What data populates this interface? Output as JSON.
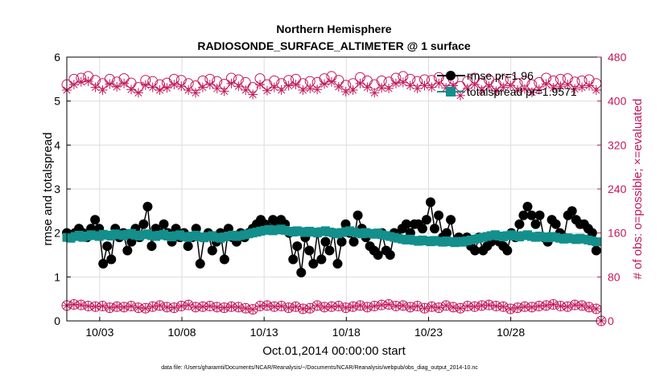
{
  "chart_data": {
    "type": "line",
    "title_line1": "Northern Hemisphere",
    "title_line2": "RADIOSONDE_SURFACE_ALTIMETER @ 1 surface",
    "xlabel": "Oct.01,2014 00:00:00 start",
    "ylabel_left": "rmse and totalspread",
    "ylabel_right": "# of obs: o=possible; ×=evaluated",
    "xlim": [
      1,
      33.5
    ],
    "ylim_left": [
      0,
      6
    ],
    "ylim_right": [
      0,
      480
    ],
    "x_ticks": [
      3,
      8,
      13,
      18,
      23,
      28
    ],
    "x_tick_labels": [
      "10/03",
      "10/08",
      "10/13",
      "10/18",
      "10/23",
      "10/28"
    ],
    "y_ticks_left": [
      0,
      1,
      2,
      3,
      4,
      5,
      6
    ],
    "y_tick_labels_left": [
      "0",
      "1",
      "2",
      "3",
      "4",
      "5",
      "6"
    ],
    "y_ticks_right": [
      0,
      80,
      160,
      240,
      320,
      400,
      480
    ],
    "y_tick_labels_right": [
      "0",
      "80",
      "160",
      "240",
      "320",
      "400",
      "480"
    ],
    "grid": true,
    "legend_position": "top-right",
    "colors": {
      "rmse": "#000000",
      "spread": "#138f8c",
      "obs": "#c2185b",
      "grid": "#dddddd"
    },
    "series": [
      {
        "name": "rmse pr=1.96",
        "axis": "left",
        "values": [
          2.0,
          1.9,
          2.0,
          2.1,
          2.0,
          1.9,
          2.1,
          2.3,
          2.1,
          1.3,
          1.7,
          1.4,
          2.1,
          1.9,
          2.0,
          1.6,
          1.8,
          2.1,
          1.9,
          2.2,
          2.6,
          1.7,
          2.1,
          2.0,
          2.2,
          2.0,
          1.8,
          2.1,
          1.9,
          2.0,
          1.7,
          1.9,
          2.1,
          1.3,
          1.9,
          2.0,
          1.6,
          1.8,
          2.0,
          1.4,
          2.1,
          1.9,
          1.8,
          2.0,
          1.9,
          2.0,
          2.1,
          2.2,
          2.3,
          2.2,
          2.1,
          2.3,
          2.2,
          2.3,
          2.2,
          2.0,
          1.4,
          1.7,
          1.1,
          1.9,
          1.6,
          1.3,
          2.0,
          1.4,
          1.8,
          1.6,
          2.0,
          1.3,
          1.8,
          2.2,
          2.0,
          1.8,
          2.4,
          2.1,
          1.9,
          1.7,
          1.6,
          1.5,
          2.0,
          1.6,
          1.5,
          2.0,
          1.9,
          2.1,
          2.2,
          2.0,
          2.2,
          2.2,
          2.1,
          2.3,
          2.7,
          2.1,
          2.4,
          1.9,
          2.0,
          2.3,
          1.8,
          1.9,
          1.8,
          1.9,
          1.7,
          1.6,
          1.9,
          1.6,
          1.7,
          1.8,
          1.9,
          1.8,
          1.7,
          1.6,
          2.0,
          1.9,
          2.2,
          2.4,
          2.6,
          2.4,
          2.2,
          2.4,
          1.9,
          1.8,
          2.3,
          2.2,
          2.0,
          1.9,
          2.4,
          2.5,
          2.3,
          2.2,
          2.2,
          2.1,
          2.0,
          1.6
        ]
      },
      {
        "name": "totalspread pr=1.9571",
        "axis": "left",
        "values": [
          1.9,
          1.88,
          1.92,
          1.95,
          1.9,
          1.93,
          1.96,
          1.94,
          1.92,
          1.97,
          1.95,
          1.93,
          1.98,
          1.96,
          1.94,
          1.97,
          1.99,
          1.95,
          1.93,
          1.96,
          1.98,
          1.94,
          1.92,
          1.95,
          1.97,
          1.93,
          1.91,
          1.94,
          1.96,
          1.92,
          1.9,
          1.93,
          1.95,
          1.91,
          1.89,
          1.92,
          1.94,
          1.9,
          1.88,
          1.91,
          1.93,
          1.95,
          1.92,
          1.94,
          1.96,
          1.98,
          2.0,
          2.02,
          2.04,
          2.06,
          2.08,
          2.05,
          2.07,
          2.09,
          2.06,
          2.04,
          2.02,
          2.05,
          2.03,
          2.01,
          2.04,
          2.02,
          2.0,
          2.03,
          2.05,
          2.02,
          2.0,
          1.98,
          2.01,
          2.03,
          2.05,
          2.02,
          2.0,
          1.98,
          2.01,
          1.99,
          1.97,
          2.0,
          1.96,
          1.94,
          1.92,
          1.9,
          1.88,
          1.86,
          1.84,
          1.86,
          1.83,
          1.81,
          1.84,
          1.82,
          1.8,
          1.83,
          1.81,
          1.79,
          1.82,
          1.8,
          1.78,
          1.81,
          1.79,
          1.82,
          1.84,
          1.86,
          1.88,
          1.9,
          1.92,
          1.94,
          1.96,
          1.93,
          1.91,
          1.94,
          1.96,
          1.93,
          1.91,
          1.94,
          1.96,
          1.92,
          1.9,
          1.93,
          1.91,
          1.89,
          1.92,
          1.9,
          1.88,
          1.86,
          1.89,
          1.87,
          1.85,
          1.88,
          1.86,
          1.84,
          1.82,
          1.8
        ]
      },
      {
        "name": "obs possible",
        "axis": "right",
        "values": [
          430,
          440,
          442,
          445,
          438,
          432,
          440,
          435,
          441,
          433,
          425,
          438,
          436,
          430,
          433,
          440,
          438,
          432,
          428,
          437,
          440,
          436,
          431,
          442,
          439,
          434,
          425,
          441,
          430,
          437,
          432,
          438,
          440,
          432,
          436,
          434,
          441,
          445,
          438,
          429,
          432,
          443,
          437,
          430,
          437,
          435,
          442,
          445,
          440,
          436,
          439,
          438,
          443,
          437,
          440,
          427,
          436,
          442,
          433,
          439,
          431,
          438,
          440,
          432,
          436,
          430,
          434,
          442,
          437,
          440,
          441,
          435,
          437,
          439,
          432
        ]
      },
      {
        "name": "obs evaluated",
        "axis": "right",
        "values": [
          420,
          430,
          435,
          436,
          425,
          420,
          431,
          426,
          432,
          421,
          415,
          429,
          425,
          420,
          424,
          430,
          427,
          420,
          415,
          425,
          430,
          423,
          418,
          432,
          427,
          420,
          412,
          430,
          419,
          425,
          420,
          428,
          430,
          420,
          423,
          421,
          431,
          435,
          426,
          417,
          420,
          432,
          425,
          415,
          424,
          423,
          432,
          434,
          428,
          423,
          428,
          425,
          432,
          424,
          428,
          410,
          423,
          430,
          420,
          427,
          418,
          425,
          428,
          420,
          422,
          416,
          421,
          431,
          424,
          427,
          430,
          422,
          425,
          428,
          420
        ]
      },
      {
        "name": "rmse obs possible",
        "axis": "right",
        "values": [
          28,
          30,
          29,
          27,
          26,
          27,
          24,
          26,
          25,
          27,
          24,
          23,
          26,
          28,
          25,
          24,
          27,
          29,
          25,
          26,
          27,
          25,
          24,
          26,
          25,
          23,
          21,
          27,
          28,
          26,
          27,
          24,
          26,
          22,
          23,
          28,
          25,
          26,
          27,
          24,
          26,
          28,
          25,
          27,
          29,
          30,
          27,
          28,
          25,
          27,
          23,
          26,
          24,
          28,
          25,
          23,
          27,
          26,
          28,
          29,
          27,
          26,
          22,
          24,
          26,
          25,
          27,
          28,
          30,
          27,
          26,
          29,
          28,
          25,
          22
        ]
      },
      {
        "name": "rmse obs evaluated",
        "axis": "right",
        "values": [
          28,
          30,
          29,
          27,
          26,
          27,
          24,
          26,
          25,
          27,
          24,
          23,
          26,
          28,
          25,
          24,
          27,
          29,
          25,
          26,
          27,
          25,
          24,
          26,
          25,
          23,
          21,
          27,
          28,
          26,
          27,
          24,
          26,
          22,
          23,
          28,
          25,
          26,
          27,
          24,
          26,
          28,
          25,
          27,
          29,
          30,
          27,
          28,
          25,
          27,
          23,
          26,
          24,
          28,
          25,
          23,
          27,
          26,
          28,
          29,
          27,
          26,
          22,
          24,
          26,
          25,
          27,
          28,
          30,
          27,
          26,
          29,
          28,
          25,
          22
        ]
      }
    ],
    "legend": [
      {
        "label": "rmse pr=1.96",
        "series": 0
      },
      {
        "label": "totalspread pr=1.9571",
        "series": 1
      }
    ],
    "footnote": "data file: /Users/gharamti/Documents/NCAR/Reanalysis/~/Documents/NCAR/Reanalysis/webpub/obs_diag_output_2014-10.nc"
  }
}
